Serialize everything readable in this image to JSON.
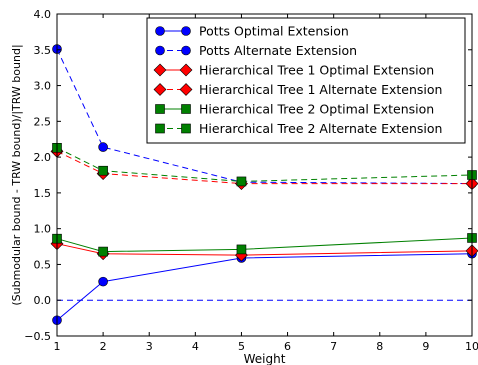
{
  "chart_data": {
    "type": "line",
    "xlabel": "Weight",
    "ylabel": "(Submodular bound - TRW bound)/|TRW bound|",
    "xlim": [
      1,
      10
    ],
    "ylim": [
      -0.5,
      4.0
    ],
    "xticks": [
      "1",
      "2",
      "3",
      "4",
      "5",
      "6",
      "7",
      "8",
      "9",
      "10"
    ],
    "yticks": [
      "−0.5",
      "0.0",
      "0.5",
      "1.0",
      "1.5",
      "2.0",
      "2.5",
      "3.0",
      "3.5",
      "4.0"
    ],
    "legend_position": "top-right",
    "grid": false,
    "x": [
      1,
      2,
      5,
      10
    ],
    "series": [
      {
        "name": "Potts Optimal Extension",
        "values": [
          -0.28,
          0.26,
          0.59,
          0.65
        ],
        "color": "#0000ff",
        "marker": "circle",
        "dashed": false
      },
      {
        "name": "Potts Alternate Extension",
        "values": [
          3.51,
          2.14,
          1.65,
          1.63
        ],
        "color": "#0000ff",
        "marker": "circle",
        "dashed": true
      },
      {
        "name": "Hierarchical Tree 1 Optimal Extension",
        "values": [
          0.79,
          0.65,
          0.63,
          0.69
        ],
        "color": "#ff0000",
        "marker": "diamond",
        "dashed": false
      },
      {
        "name": "Hierarchical Tree 1 Alternate Extension",
        "values": [
          2.08,
          1.77,
          1.63,
          1.63
        ],
        "color": "#ff0000",
        "marker": "diamond",
        "dashed": true
      },
      {
        "name": "Hierarchical Tree 2 Optimal Extension",
        "values": [
          0.86,
          0.68,
          0.71,
          0.87
        ],
        "color": "#008000",
        "marker": "square",
        "dashed": false
      },
      {
        "name": "Hierarchical Tree 2 Alternate Extension",
        "values": [
          2.13,
          1.81,
          1.66,
          1.75
        ],
        "color": "#008000",
        "marker": "square",
        "dashed": true
      }
    ],
    "reference_line": {
      "y": 0.0,
      "color": "#0000ff",
      "dashed": true
    }
  }
}
